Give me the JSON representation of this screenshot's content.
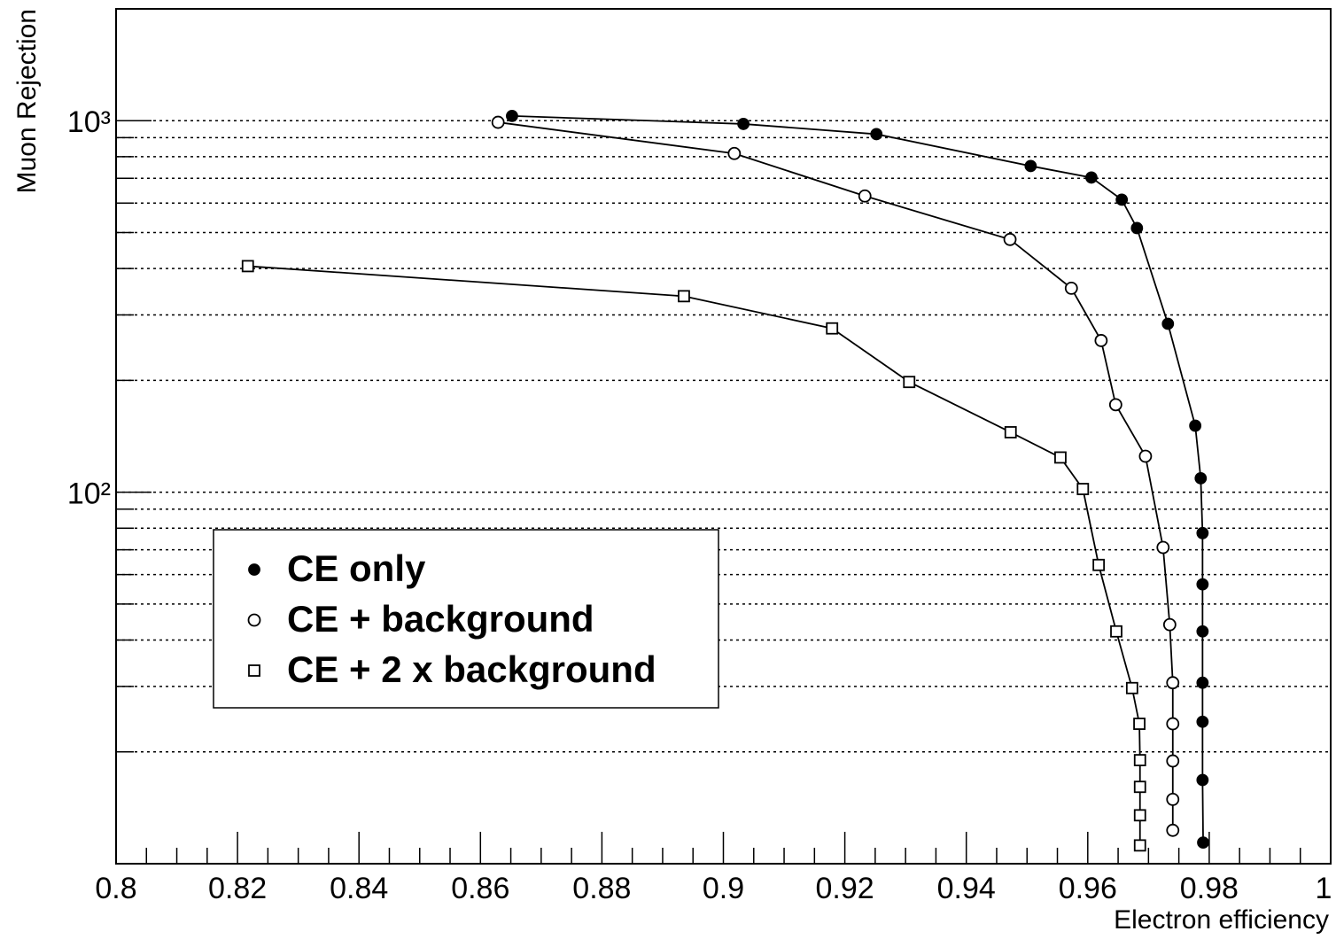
{
  "chart_data": {
    "type": "line",
    "x_label": "Electron efficiency",
    "y_label": "Muon Rejection",
    "log_y": true,
    "grid": "y",
    "legend": "lower left",
    "xlim": [
      0.8,
      1.0
    ],
    "xticks": [
      0.8,
      0.82,
      0.84,
      0.86,
      0.88,
      0.9,
      0.92,
      0.94,
      0.96,
      0.98,
      1
    ],
    "minor_xticks": [
      0.805,
      0.81,
      0.815,
      0.825,
      0.83,
      0.835,
      0.845,
      0.85,
      0.855,
      0.865,
      0.87,
      0.875,
      0.885,
      0.89,
      0.895,
      0.905,
      0.91,
      0.915,
      0.925,
      0.93,
      0.935,
      0.945,
      0.95,
      0.955,
      0.965,
      0.97,
      0.975,
      0.985,
      0.99,
      0.995
    ],
    "ylim": [
      10,
      2000
    ],
    "yticks": [
      {
        "value": 100,
        "label": "10²"
      },
      {
        "value": 1000,
        "label": "10³"
      }
    ],
    "minor_yticks": [
      20,
      30,
      40,
      50,
      60,
      70,
      80,
      90,
      200,
      300,
      400,
      500,
      600,
      700,
      800,
      900
    ],
    "series": [
      {
        "name": "CE only",
        "color": "#000000",
        "marker": "filled-circle",
        "x": [
          0.8652,
          0.9033,
          0.9252,
          0.9506,
          0.9606,
          0.9656,
          0.9681,
          0.9732,
          0.9777,
          0.9786,
          0.9789,
          0.9789,
          0.9789,
          0.9789,
          0.9789,
          0.9789,
          0.979
        ],
        "values": [
          1030,
          980,
          920,
          755,
          703,
          613,
          514,
          284,
          151,
          109,
          77.6,
          56.5,
          42.2,
          30.7,
          24.1,
          16.8,
          11.4
        ]
      },
      {
        "name": "CE + background",
        "color": "#000000",
        "marker": "open-circle",
        "x": [
          0.8629,
          0.9018,
          0.9233,
          0.9472,
          0.9573,
          0.9622,
          0.9646,
          0.9695,
          0.9724,
          0.9735,
          0.974,
          0.974,
          0.974,
          0.974,
          0.974
        ],
        "values": [
          990,
          816,
          627,
          479,
          354,
          256,
          172,
          125,
          71,
          44,
          30.7,
          23.8,
          18.9,
          14.9,
          12.3
        ]
      },
      {
        "name": "CE + 2 x background",
        "color": "#000000",
        "marker": "open-square",
        "x": [
          0.8217,
          0.8935,
          0.9179,
          0.9306,
          0.9473,
          0.9555,
          0.9592,
          0.9618,
          0.9647,
          0.9673,
          0.9685,
          0.9686,
          0.9686,
          0.9686,
          0.9686
        ],
        "values": [
          406,
          337,
          276,
          198,
          145,
          124,
          102,
          63.7,
          42.2,
          29.7,
          23.8,
          19.0,
          16.1,
          13.5,
          11.2
        ]
      }
    ]
  }
}
